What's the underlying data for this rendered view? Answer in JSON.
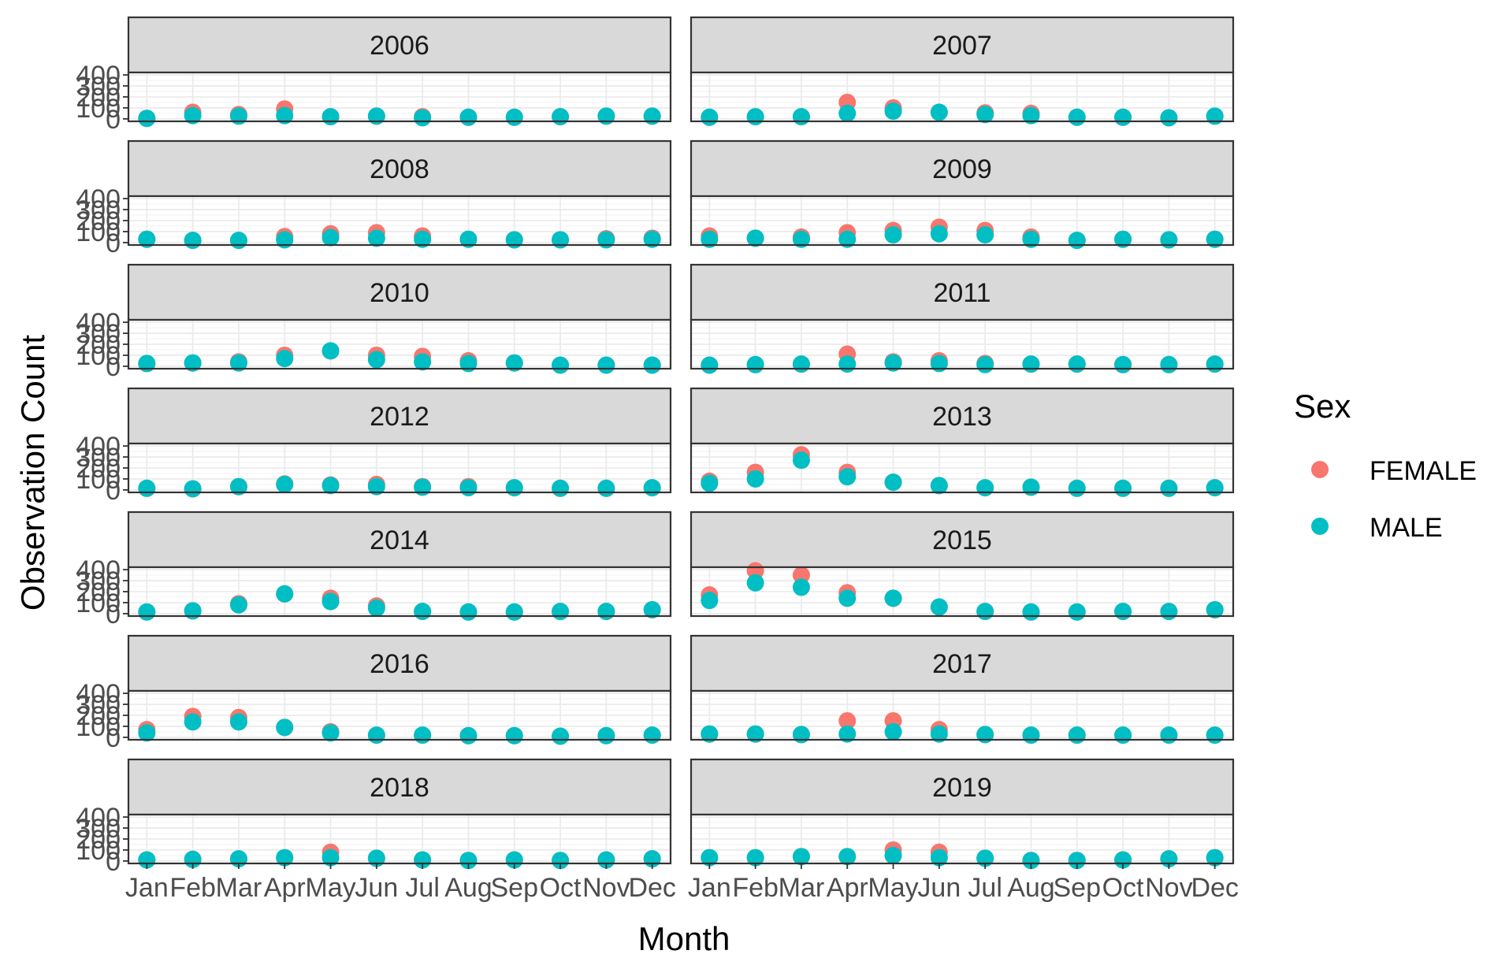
{
  "chart_data": {
    "type": "scatter",
    "facet_by": "year",
    "xlabel": "Month",
    "ylabel": "Observation Count",
    "categories": [
      "Jan",
      "Feb",
      "Mar",
      "Apr",
      "May",
      "Jun",
      "Jul",
      "Aug",
      "Sep",
      "Oct",
      "Nov",
      "Dec"
    ],
    "ylim": [
      0,
      400
    ],
    "yticks": [
      0,
      100,
      200,
      300,
      400
    ],
    "grid": true,
    "legend": {
      "title": "Sex",
      "position": "right",
      "entries": [
        {
          "name": "FEMALE",
          "color": "#F8766D"
        },
        {
          "name": "MALE",
          "color": "#00BFC4"
        }
      ]
    },
    "panels": [
      {
        "year": "2006",
        "series": [
          {
            "name": "FEMALE",
            "values": [
              5,
              60,
              40,
              90,
              20,
              25,
              20,
              15,
              15,
              20,
              25,
              25
            ]
          },
          {
            "name": "MALE",
            "values": [
              5,
              30,
              25,
              30,
              20,
              25,
              10,
              15,
              15,
              20,
              25,
              25
            ]
          }
        ]
      },
      {
        "year": "2007",
        "series": [
          {
            "name": "FEMALE",
            "values": [
              15,
              20,
              20,
              150,
              100,
              60,
              55,
              50,
              15,
              15,
              10,
              25
            ]
          },
          {
            "name": "MALE",
            "values": [
              15,
              20,
              20,
              50,
              70,
              60,
              40,
              30,
              15,
              15,
              10,
              25
            ]
          }
        ]
      },
      {
        "year": "2008",
        "series": [
          {
            "name": "FEMALE",
            "values": [
              30,
              20,
              20,
              55,
              80,
              90,
              60,
              30,
              25,
              25,
              35,
              40
            ]
          },
          {
            "name": "MALE",
            "values": [
              30,
              20,
              20,
              25,
              45,
              40,
              30,
              30,
              25,
              25,
              25,
              30
            ]
          }
        ]
      },
      {
        "year": "2009",
        "series": [
          {
            "name": "FEMALE",
            "values": [
              60,
              40,
              50,
              90,
              110,
              140,
              110,
              50,
              20,
              30,
              25,
              30
            ]
          },
          {
            "name": "MALE",
            "values": [
              30,
              40,
              30,
              30,
              70,
              80,
              70,
              30,
              20,
              30,
              25,
              30
            ]
          }
        ]
      },
      {
        "year": "2010",
        "series": [
          {
            "name": "FEMALE",
            "values": [
              25,
              30,
              40,
              100,
              140,
              100,
              90,
              50,
              30,
              10,
              10,
              10
            ]
          },
          {
            "name": "MALE",
            "values": [
              25,
              30,
              30,
              70,
              140,
              60,
              40,
              25,
              30,
              10,
              10,
              10
            ]
          }
        ]
      },
      {
        "year": "2011",
        "series": [
          {
            "name": "FEMALE",
            "values": [
              10,
              15,
              20,
              110,
              40,
              50,
              25,
              20,
              20,
              15,
              15,
              20
            ]
          },
          {
            "name": "MALE",
            "values": [
              10,
              15,
              20,
              20,
              30,
              25,
              15,
              20,
              20,
              15,
              15,
              20
            ]
          }
        ]
      },
      {
        "year": "2012",
        "series": [
          {
            "name": "FEMALE",
            "values": [
              15,
              10,
              30,
              55,
              45,
              50,
              30,
              30,
              20,
              15,
              15,
              20
            ]
          },
          {
            "name": "MALE",
            "values": [
              15,
              10,
              30,
              50,
              40,
              30,
              25,
              20,
              20,
              15,
              15,
              20
            ]
          }
        ]
      },
      {
        "year": "2013",
        "series": [
          {
            "name": "FEMALE",
            "values": [
              80,
              160,
              320,
              160,
              70,
              40,
              20,
              25,
              15,
              15,
              15,
              20
            ]
          },
          {
            "name": "MALE",
            "values": [
              60,
              100,
              270,
              120,
              70,
              40,
              20,
              25,
              15,
              15,
              15,
              20
            ]
          }
        ]
      },
      {
        "year": "2014",
        "series": [
          {
            "name": "FEMALE",
            "values": [
              15,
              25,
              90,
              180,
              140,
              70,
              20,
              15,
              15,
              20,
              20,
              35
            ]
          },
          {
            "name": "MALE",
            "values": [
              15,
              25,
              80,
              180,
              110,
              50,
              20,
              15,
              15,
              20,
              20,
              35
            ]
          }
        ]
      },
      {
        "year": "2015",
        "series": [
          {
            "name": "FEMALE",
            "values": [
              170,
              390,
              350,
              190,
              140,
              60,
              20,
              15,
              15,
              20,
              20,
              35
            ]
          },
          {
            "name": "MALE",
            "values": [
              120,
              280,
              240,
              140,
              140,
              60,
              20,
              15,
              15,
              20,
              20,
              35
            ]
          }
        ]
      },
      {
        "year": "2016",
        "series": [
          {
            "name": "FEMALE",
            "values": [
              70,
              190,
              180,
              90,
              50,
              20,
              20,
              15,
              15,
              10,
              15,
              20
            ]
          },
          {
            "name": "MALE",
            "values": [
              40,
              140,
              140,
              90,
              40,
              20,
              20,
              15,
              15,
              10,
              15,
              20
            ]
          }
        ]
      },
      {
        "year": "2017",
        "series": [
          {
            "name": "FEMALE",
            "values": [
              30,
              30,
              25,
              150,
              150,
              70,
              25,
              20,
              20,
              20,
              20,
              20
            ]
          },
          {
            "name": "MALE",
            "values": [
              30,
              30,
              25,
              30,
              50,
              30,
              25,
              20,
              20,
              20,
              20,
              20
            ]
          }
        ]
      },
      {
        "year": "2018",
        "series": [
          {
            "name": "FEMALE",
            "values": [
              10,
              15,
              20,
              30,
              80,
              25,
              10,
              5,
              10,
              5,
              10,
              20
            ]
          },
          {
            "name": "MALE",
            "values": [
              10,
              15,
              20,
              30,
              30,
              25,
              10,
              5,
              10,
              5,
              10,
              20
            ]
          }
        ]
      },
      {
        "year": "2019",
        "series": [
          {
            "name": "FEMALE",
            "values": [
              30,
              30,
              40,
              40,
              100,
              80,
              25,
              5,
              5,
              10,
              20,
              30
            ]
          },
          {
            "name": "MALE",
            "values": [
              30,
              30,
              40,
              40,
              50,
              30,
              25,
              5,
              5,
              10,
              20,
              30
            ]
          }
        ]
      }
    ]
  }
}
